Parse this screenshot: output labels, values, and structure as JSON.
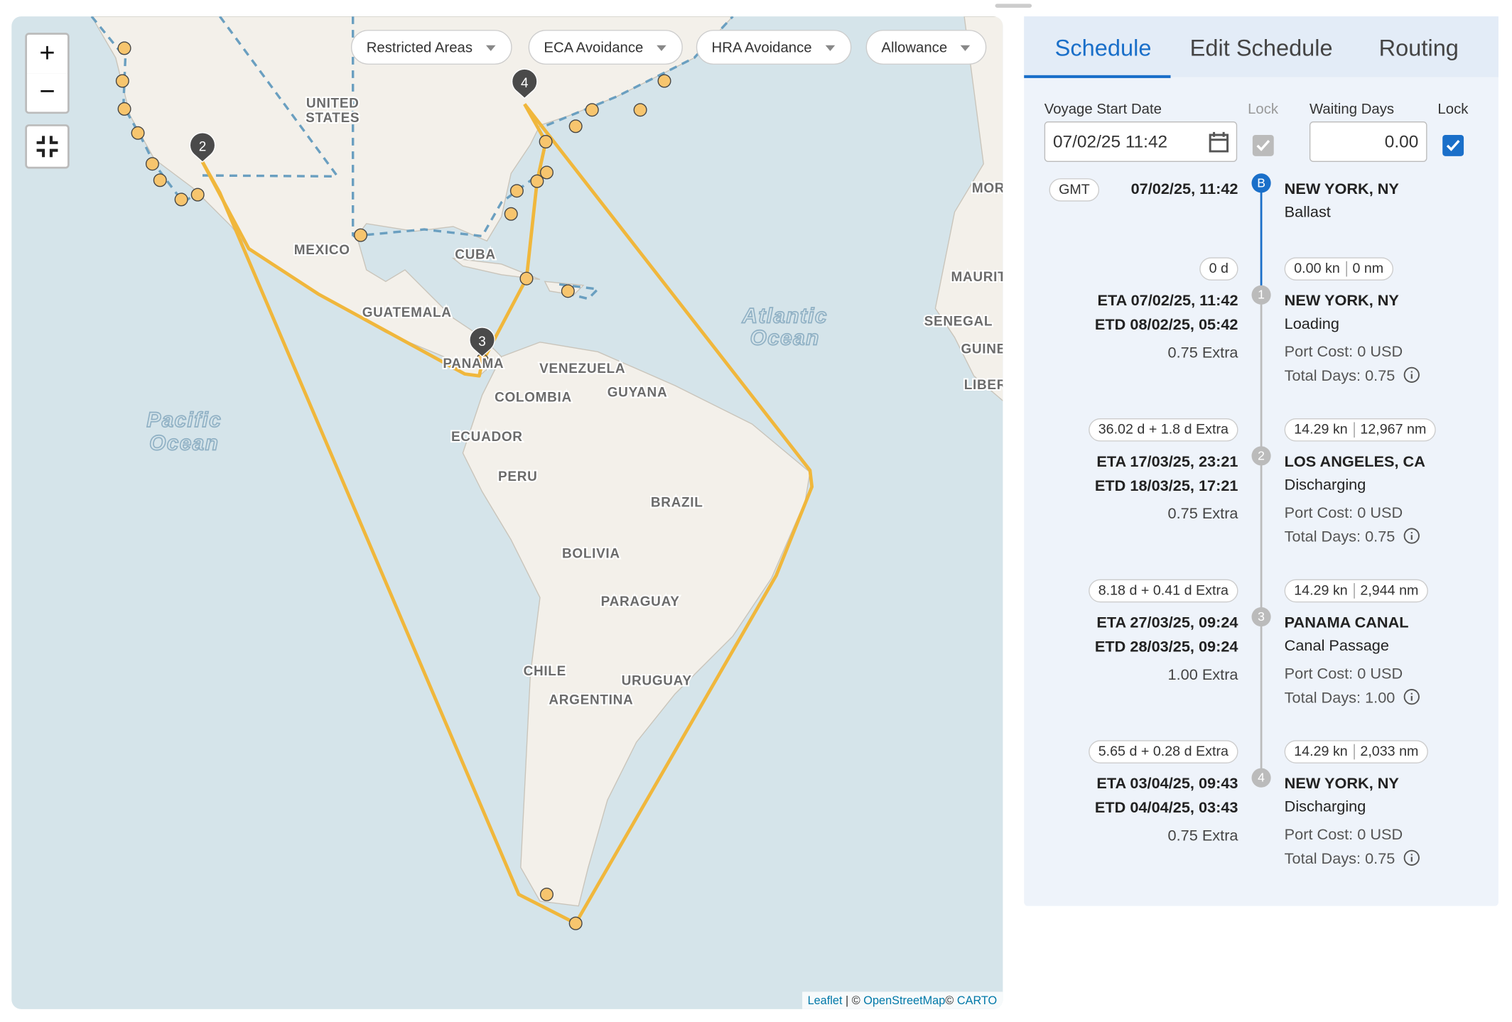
{
  "map": {
    "filters": [
      "Restricted Areas",
      "ECA Avoidance",
      "HRA Avoidance",
      "Allowance"
    ],
    "zoom_in": "+",
    "zoom_out": "−",
    "labels": [
      "UNITED",
      "STATES",
      "MEXICO",
      "CUBA",
      "GUATEMALA",
      "PANAMA",
      "VENEZUELA",
      "GUYANA",
      "COLOMBIA",
      "ECUADOR",
      "PERU",
      "BRAZIL",
      "BOLIVIA",
      "PARAGUAY",
      "CHILE",
      "URUGUAY",
      "ARGENTINA",
      "MOR",
      "MAURIT",
      "SENEGAL",
      "GUINE",
      "LIBER"
    ],
    "ocean_labels": [
      "Atlantic",
      "Ocean",
      "Pacific",
      "Ocean"
    ],
    "markers": [
      "2",
      "3",
      "4"
    ],
    "attribution": {
      "leaflet": "Leaflet",
      "separator": "| ©",
      "osm": "OpenStreetMap",
      "copyright": "©",
      "carto": "CARTO"
    }
  },
  "tabs": [
    "Schedule",
    "Edit Schedule",
    "Routing"
  ],
  "form": {
    "start_label": "Voyage Start Date",
    "start_value": "07/02/25 11:42",
    "lock_label_1": "Lock",
    "waiting_label": "Waiting Days",
    "waiting_value": "0.00",
    "lock_label_2": "Lock"
  },
  "start": {
    "timezone": "GMT",
    "date": "07/02/25, 11:42",
    "badge": "B",
    "port": "NEW YORK, NY",
    "activity": "Ballast"
  },
  "legs": [
    {
      "duration": "0 d",
      "speed": "0.00 kn",
      "distance": "0 nm",
      "eta": "ETA 07/02/25, 11:42",
      "etd": "ETD 08/02/25, 05:42",
      "extra": "0.75 Extra",
      "number": "1",
      "port": "NEW YORK, NY",
      "activity": "Loading",
      "port_cost": "Port Cost: 0 USD",
      "total_days": "Total Days: 0.75"
    },
    {
      "duration": "36.02 d + 1.8 d Extra",
      "speed": "14.29 kn",
      "distance": "12,967 nm",
      "eta": "ETA 17/03/25, 23:21",
      "etd": "ETD 18/03/25, 17:21",
      "extra": "0.75 Extra",
      "number": "2",
      "port": "LOS ANGELES, CA",
      "activity": "Discharging",
      "port_cost": "Port Cost: 0 USD",
      "total_days": "Total Days: 0.75"
    },
    {
      "duration": "8.18 d + 0.41 d Extra",
      "speed": "14.29 kn",
      "distance": "2,944 nm",
      "eta": "ETA 27/03/25, 09:24",
      "etd": "ETD 28/03/25, 09:24",
      "extra": "1.00 Extra",
      "number": "3",
      "port": "PANAMA CANAL",
      "activity": "Canal Passage",
      "port_cost": "Port Cost: 0 USD",
      "total_days": "Total Days: 1.00"
    },
    {
      "duration": "5.65 d + 0.28 d Extra",
      "speed": "14.29 kn",
      "distance": "2,033 nm",
      "eta": "ETA 03/04/25, 09:43",
      "etd": "ETD 04/04/25, 03:43",
      "extra": "0.75 Extra",
      "number": "4",
      "port": "NEW YORK, NY",
      "activity": "Discharging",
      "port_cost": "Port Cost: 0 USD",
      "total_days": "Total Days: 0.75"
    }
  ]
}
